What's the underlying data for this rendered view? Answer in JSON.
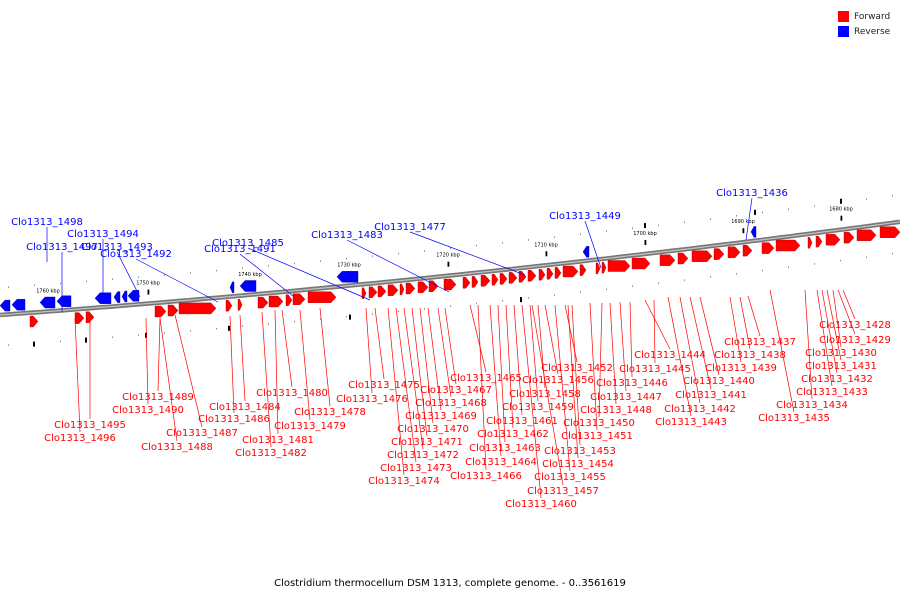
{
  "legend": {
    "forward_label": "Forward",
    "reverse_label": "Reverse",
    "forward_color": "#ff0000",
    "reverse_color": "#0000ff"
  },
  "caption": "Clostridium thermocellum DSM 1313, complete genome. - 0..3561619",
  "ticks": [
    "1760 kbp",
    "1750 kbp",
    "1740 kbp",
    "1730 kbp",
    "1720 kbp",
    "1710 kbp",
    "1700 kbp",
    "1690 kbp",
    "1680 kbp"
  ],
  "reverse_genes": [
    "Clo1313_1498",
    "Clo1313_1497",
    "Clo1313_1494",
    "Clo1313_1493",
    "Clo1313_1492",
    "Clo1313_1491",
    "Clo1313_1485",
    "Clo1313_1483",
    "Clo1313_1477",
    "Clo1313_1449",
    "Clo1313_1436"
  ],
  "forward_genes": [
    "Clo1313_1428",
    "Clo1313_1429",
    "Clo1313_1430",
    "Clo1313_1431",
    "Clo1313_1432",
    "Clo1313_1433",
    "Clo1313_1434",
    "Clo1313_1435",
    "Clo1313_1437",
    "Clo1313_1438",
    "Clo1313_1439",
    "Clo1313_1440",
    "Clo1313_1441",
    "Clo1313_1442",
    "Clo1313_1443",
    "Clo1313_1444",
    "Clo1313_1445",
    "Clo1313_1446",
    "Clo1313_1447",
    "Clo1313_1448",
    "Clo1313_1450",
    "Clo1313_1451",
    "Clo1313_1452",
    "Clo1313_1453",
    "Clo1313_1454",
    "Clo1313_1455",
    "Clo1313_1456",
    "Clo1313_1457",
    "Clo1313_1458",
    "Clo1313_1459",
    "Clo1313_1460",
    "Clo1313_1461",
    "Clo1313_1462",
    "Clo1313_1463",
    "Clo1313_1464",
    "Clo1313_1465",
    "Clo1313_1466",
    "Clo1313_1467",
    "Clo1313_1468",
    "Clo1313_1469",
    "Clo1313_1470",
    "Clo1313_1471",
    "Clo1313_1472",
    "Clo1313_1473",
    "Clo1313_1474",
    "Clo1313_1475",
    "Clo1313_1476",
    "Clo1313_1478",
    "Clo1313_1479",
    "Clo1313_1480",
    "Clo1313_1481",
    "Clo1313_1482",
    "Clo1313_1484",
    "Clo1313_1486",
    "Clo1313_1487",
    "Clo1313_1488",
    "Clo1313_1489",
    "Clo1313_1490",
    "Clo1313_1495",
    "Clo1313_1496"
  ]
}
